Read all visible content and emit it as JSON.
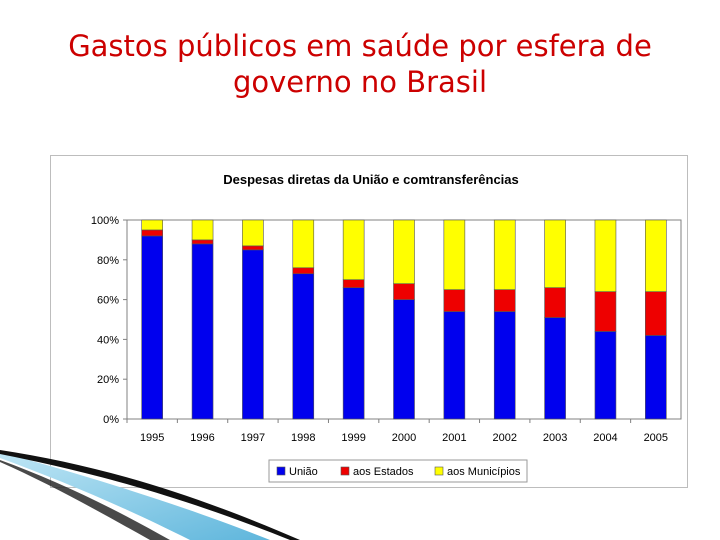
{
  "slide": {
    "title_line1": "Gastos públicos em saúde por esfera de",
    "title_line2": "governo no Brasil"
  },
  "colors": {
    "uniao": "#0000ee",
    "estados": "#ee0000",
    "municipios": "#ffff00",
    "title": "#cc0000"
  },
  "chart_data": {
    "type": "bar",
    "stacked": true,
    "percent": true,
    "title": "Despesas diretas da União e com transferências",
    "title_text": "Despesas diretas da União e comtransferências",
    "categories": [
      "1995",
      "1996",
      "1997",
      "1998",
      "1999",
      "2000",
      "2001",
      "2002",
      "2003",
      "2004",
      "2005"
    ],
    "series": [
      {
        "name": "União",
        "values": [
          92,
          88,
          85,
          73,
          66,
          60,
          54,
          54,
          51,
          44,
          42
        ]
      },
      {
        "name": "aos Estados",
        "values": [
          3,
          2,
          2,
          3,
          4,
          8,
          11,
          11,
          15,
          20,
          22
        ]
      },
      {
        "name": "aos Municípios",
        "values": [
          5,
          10,
          13,
          24,
          30,
          32,
          35,
          35,
          34,
          36,
          36
        ]
      }
    ],
    "yticks": [
      "0%",
      "20%",
      "40%",
      "60%",
      "80%",
      "100%"
    ],
    "ylim": [
      0,
      100
    ],
    "xlabel": "",
    "ylabel": "",
    "legend_position": "bottom"
  }
}
